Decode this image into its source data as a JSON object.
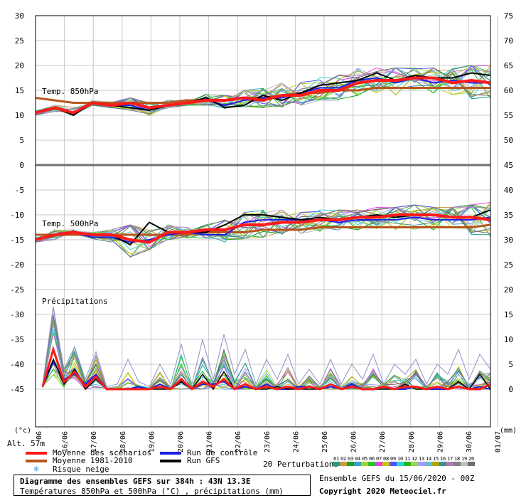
{
  "chart_data": {
    "type": "line",
    "left_axis": {
      "unit": "(°c)",
      "ticks": [
        "30",
        "25",
        "20",
        "15",
        "10",
        "5",
        "0",
        "-5",
        "-10",
        "-15",
        "-20",
        "-25",
        "-30",
        "-35",
        "-40",
        "-45"
      ]
    },
    "right_axis": {
      "unit": "(mm)",
      "ticks": [
        "75",
        "70",
        "65",
        "60",
        "55",
        "50",
        "45",
        "40",
        "35",
        "30",
        "25",
        "20",
        "15",
        "10",
        "5",
        "0"
      ]
    },
    "x_ticks": [
      "16/06",
      "17/06",
      "18/06",
      "19/06",
      "20/06",
      "21/06",
      "22/06",
      "23/06",
      "24/06",
      "25/06",
      "26/06",
      "27/06",
      "28/06",
      "29/06",
      "30/06",
      "01/07"
    ],
    "first_tick_fragment": "06",
    "panels": {
      "t850": {
        "label": "Temp. 850hPa",
        "ylim": [
          0,
          30
        ]
      },
      "t500": {
        "label": "Temp. 500hPa",
        "ylim": [
          -45,
          0
        ]
      },
      "precip": {
        "label": "Précipitations",
        "ylim_mm": [
          0,
          15
        ]
      }
    },
    "t850": {
      "mean": [
        10.5,
        11.5,
        10.5,
        12.5,
        12,
        12.5,
        11.5,
        12,
        12.5,
        13,
        13,
        13.5,
        13,
        14,
        14,
        15,
        15,
        16.5,
        17,
        17,
        17.5,
        17.5,
        16.5,
        17,
        16.5
      ],
      "clim": [
        13.5,
        13,
        12.5,
        12.5,
        12.5,
        12.5,
        12.5,
        12.5,
        13,
        13,
        13,
        13.5,
        13.5,
        14,
        14.5,
        14.5,
        15,
        15,
        15.5,
        15.5,
        15.5,
        15.5,
        15.5,
        15.5,
        15.5
      ],
      "gfs": [
        10.5,
        11.5,
        10,
        12.5,
        12,
        11.5,
        11,
        12,
        12.5,
        13.5,
        11.5,
        12,
        14,
        13,
        14.5,
        16,
        16.5,
        17,
        18.5,
        17,
        18,
        17.5,
        17.5,
        18.5,
        18
      ],
      "control": [
        10.5,
        11.5,
        10.5,
        12.5,
        12,
        12,
        11,
        12,
        12.5,
        13,
        12,
        13,
        13.5,
        13.5,
        14.5,
        15.5,
        15.5,
        17,
        17.5,
        16.5,
        17.5,
        16.5,
        17,
        16.5,
        16.5
      ],
      "spread_low": [
        10,
        10.5,
        10,
        12,
        11.5,
        10.5,
        9.5,
        11.5,
        12,
        12,
        11,
        11.5,
        11.5,
        11.5,
        12,
        13,
        13,
        14,
        14.5,
        14,
        14.5,
        14,
        13.5,
        13,
        13
      ],
      "spread_high": [
        11,
        12,
        12,
        13,
        13,
        13.5,
        12.5,
        13.5,
        13.5,
        14.5,
        14,
        15,
        16,
        16.5,
        17,
        18.5,
        19,
        19.5,
        19.5,
        19.5,
        19.5,
        19.5,
        19.5,
        20,
        20
      ]
    },
    "t500": {
      "mean": [
        -15,
        -14,
        -13.5,
        -14,
        -14,
        -15,
        -15.5,
        -13.5,
        -13.5,
        -13,
        -13,
        -12,
        -12,
        -11.5,
        -11.5,
        -11,
        -11,
        -10.5,
        -10.5,
        -10,
        -10,
        -10,
        -10.5,
        -10.5,
        -11
      ],
      "clim": [
        -14,
        -14,
        -14,
        -14,
        -14,
        -14,
        -14,
        -14,
        -14,
        -13.5,
        -13.5,
        -13.5,
        -13,
        -13,
        -13,
        -12.5,
        -12.5,
        -12.5,
        -12.5,
        -12.5,
        -12.5,
        -12.5,
        -12.5,
        -12.5,
        -12
      ],
      "gfs": [
        -15,
        -14,
        -13.5,
        -14,
        -14,
        -16,
        -11.5,
        -13.5,
        -13.5,
        -13.5,
        -12,
        -10,
        -10,
        -10.5,
        -11,
        -10.5,
        -11,
        -10.5,
        -10,
        -10.5,
        -10,
        -10,
        -10.5,
        -10.5,
        -9
      ],
      "control": [
        -15,
        -14,
        -13.5,
        -14.5,
        -14.5,
        -15.5,
        -15,
        -14,
        -13.5,
        -14,
        -14,
        -11.5,
        -11,
        -11,
        -11,
        -11,
        -11.5,
        -11,
        -11,
        -11,
        -10.5,
        -11,
        -11,
        -11,
        -10.5
      ],
      "spread_low": [
        -15.5,
        -15,
        -14,
        -15,
        -16,
        -19,
        -17,
        -15,
        -15,
        -15.5,
        -15.5,
        -15,
        -14.5,
        -14,
        -14,
        -13.5,
        -13.5,
        -14,
        -13,
        -14,
        -14.5,
        -14,
        -14,
        -14.5,
        -15
      ],
      "spread_high": [
        -14.5,
        -13,
        -13,
        -13.5,
        -13,
        -12,
        -11,
        -12,
        -12.5,
        -12,
        -11,
        -9.5,
        -9,
        -9,
        -9.5,
        -9,
        -9,
        -9,
        -8.5,
        -8.5,
        -8,
        -8.5,
        -8.5,
        -8,
        -7.5
      ]
    },
    "precip": {
      "mean": [
        0.5,
        8,
        1.5,
        3.5,
        0.5,
        2.5,
        0,
        0,
        0,
        0,
        0,
        0.5,
        0,
        2,
        0,
        1.5,
        0.5,
        2,
        0,
        1,
        0,
        0.5,
        0,
        0.5,
        0,
        0.5,
        0,
        1,
        0,
        0.5,
        0,
        0,
        0.5,
        0,
        0.5,
        0.5,
        0,
        0.5,
        0,
        0.5,
        0,
        0,
        1
      ],
      "gfs": [
        0.5,
        6,
        1,
        4,
        0,
        2,
        0,
        0,
        0,
        0,
        0,
        0,
        0,
        1.5,
        0,
        3,
        0,
        3.5,
        0,
        1,
        0,
        0,
        0.5,
        0,
        0,
        0,
        0,
        1,
        0,
        0.5,
        0,
        0,
        0,
        0,
        1,
        0,
        0,
        0.5,
        0,
        1.5,
        0,
        3,
        0
      ],
      "control": [
        0.5,
        5.5,
        2,
        3,
        1,
        3,
        0,
        0,
        0,
        0.5,
        0,
        1,
        0,
        1.5,
        0,
        1,
        1,
        1.5,
        0,
        0.5,
        0,
        1,
        0,
        0,
        0.5,
        0.5,
        0,
        0.5,
        0,
        1,
        0,
        0,
        0.5,
        0,
        0,
        0.5,
        0,
        0,
        0,
        0.5,
        0,
        0.5,
        0
      ],
      "spread_high": [
        1,
        16.5,
        4,
        8.5,
        2,
        7.5,
        0.5,
        1,
        6,
        1.5,
        0.5,
        5,
        1,
        9,
        1,
        10,
        2,
        11,
        3,
        8,
        1,
        6,
        2,
        7,
        1,
        4,
        1,
        6,
        1,
        5,
        2,
        7,
        1,
        5,
        3,
        6,
        1,
        5,
        3,
        8,
        2,
        7,
        4
      ]
    },
    "colors": {
      "mean": "#ff1a1a",
      "clim": "#b8561c",
      "control": "#1f1fe0",
      "gfs": "#000000",
      "snow": "#4aa3df"
    },
    "perturbation_colors": [
      "#1e9c8c",
      "#c89c46",
      "#1aa31a",
      "#3aa3c8",
      "#a0d62a",
      "#28c428",
      "#e840e8",
      "#c8c800",
      "#5050ff",
      "#28d6d6",
      "#22b822",
      "#9ad64a",
      "#a0a0ff",
      "#6ab8d6",
      "#a8a800",
      "#4a8a8a",
      "#b47ab4",
      "#808080",
      "#c0c0c0",
      "#6d6d6d"
    ]
  },
  "altitude": "Alt. 57m",
  "legend": {
    "mean": "Moyenne des scénarios",
    "clim": "Moyenne 1981-2010",
    "snow": "Risque neige",
    "control": "Run de contrôle",
    "gfs": "Run GFS",
    "perturbations_label": "20 Perturbations",
    "pert_numbers": [
      "01",
      "02",
      "03",
      "04",
      "05",
      "06",
      "07",
      "08",
      "09",
      "10",
      "11",
      "12",
      "13",
      "14",
      "15",
      "16",
      "17",
      "18",
      "19",
      "20"
    ]
  },
  "title": {
    "line1": "Diagramme des ensembles GEFS sur 384h : 43N 13.3E",
    "line2": "Températures 850hPa et 500hPa (°C) , précipitations (mm)"
  },
  "ensemble_info": "Ensemble GEFS du 15/06/2020 - 00Z",
  "copyright": "Copyright 2020 Meteociel.fr"
}
